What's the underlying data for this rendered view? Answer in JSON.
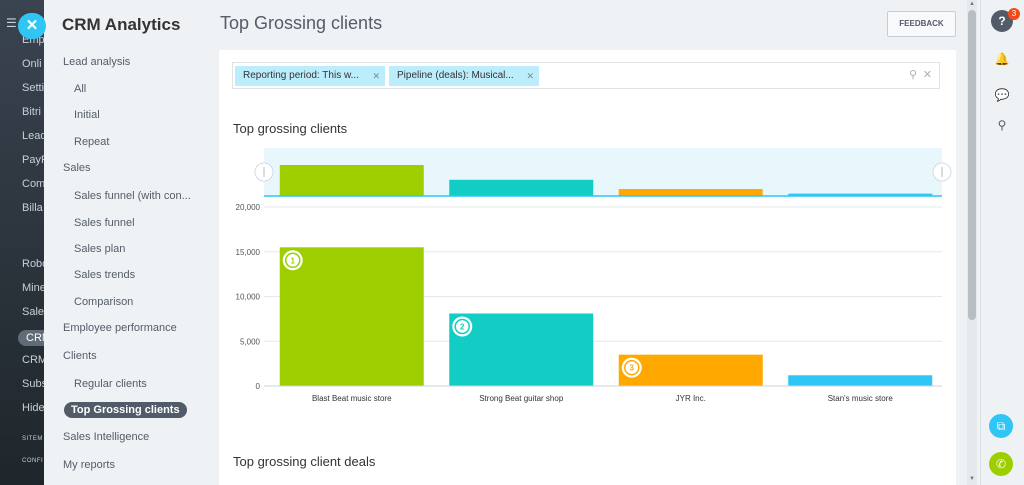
{
  "background_sidebar": {
    "items": [
      {
        "label": "Emp",
        "top": 34
      },
      {
        "label": "Onli",
        "top": 58
      },
      {
        "label": "Setti",
        "top": 82
      },
      {
        "label": "Bitri",
        "top": 106
      },
      {
        "label": "Lead",
        "top": 130
      },
      {
        "label": "PayF",
        "top": 154
      },
      {
        "label": "Com",
        "top": 178
      },
      {
        "label": "Billa",
        "top": 202
      },
      {
        "label": "Robo",
        "top": 258
      },
      {
        "label": "Mine",
        "top": 282
      },
      {
        "label": "Sales",
        "top": 306
      },
      {
        "label": "CRM",
        "top": 330
      },
      {
        "label": "CRM",
        "top": 354
      },
      {
        "label": "Subs",
        "top": 378
      },
      {
        "label": "Hide",
        "top": 402
      },
      {
        "label": "SITEM",
        "top": 436
      },
      {
        "label": "CONFI",
        "top": 458
      }
    ]
  },
  "menu": {
    "title": "CRM Analytics",
    "items": [
      {
        "label": "Lead analysis",
        "level": 1
      },
      {
        "label": "All",
        "level": 2
      },
      {
        "label": "Initial",
        "level": 2
      },
      {
        "label": "Repeat",
        "level": 2
      },
      {
        "label": "Sales",
        "level": 1
      },
      {
        "label": "Sales funnel (with con...",
        "level": 2
      },
      {
        "label": "Sales funnel",
        "level": 2
      },
      {
        "label": "Sales plan",
        "level": 2
      },
      {
        "label": "Sales trends",
        "level": 2
      },
      {
        "label": "Comparison",
        "level": 2
      },
      {
        "label": "Employee performance",
        "level": 1
      },
      {
        "label": "Clients",
        "level": 1
      },
      {
        "label": "Regular clients",
        "level": 2
      },
      {
        "label": "Top Grossing clients",
        "level": 2,
        "active": true
      },
      {
        "label": "Sales Intelligence",
        "level": 1
      },
      {
        "label": "My reports",
        "level": 1
      }
    ]
  },
  "header": {
    "title": "Top Grossing clients",
    "feedback_label": "FEEDBACK"
  },
  "filter": {
    "chips": [
      {
        "label": "Reporting period: This w..."
      },
      {
        "label": "Pipeline (deals): Musical..."
      }
    ]
  },
  "sections": {
    "chart_title": "Top grossing clients",
    "deals_title": "Top grossing client deals"
  },
  "chart_data": {
    "type": "bar",
    "title": "Top grossing clients",
    "categories": [
      "Blast Beat music store",
      "Strong Beat guitar shop",
      "JYR Inc.",
      "Stan's music store"
    ],
    "values": [
      15500,
      8100,
      3500,
      1200
    ],
    "colors": [
      "#9dcf00",
      "#11cdc4",
      "#ffa900",
      "#2fc6f6"
    ],
    "ranks": [
      1,
      2,
      3,
      null
    ],
    "yticks": [
      "0",
      "5,000",
      "10,000",
      "15,000",
      "20,000"
    ],
    "ylim": [
      0,
      20000
    ]
  },
  "rightbar": {
    "help_badge": "3"
  }
}
